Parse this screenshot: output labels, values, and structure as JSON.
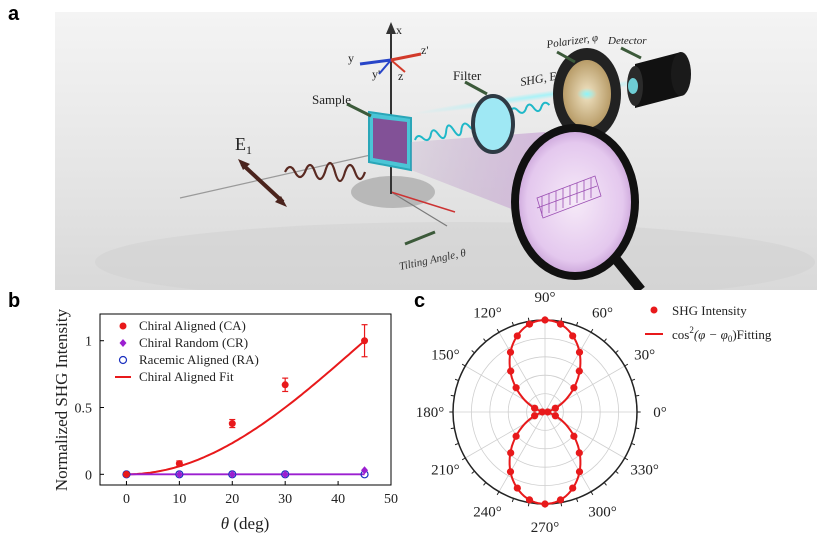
{
  "panels": {
    "a": "a",
    "b": "b",
    "c": "c"
  },
  "schematic": {
    "axis_x": "x",
    "axis_y": "y",
    "axis_z": "z",
    "axis_yp": "y'",
    "axis_zp": "z'",
    "sample": "Sample",
    "filter": "Filter",
    "polarizer": "Polarizer, φ",
    "detector": "Detector",
    "shg": "SHG, E",
    "shg_sub": "2",
    "e1": "E",
    "e1_sub": "1",
    "tilt": "Tilting Angle, θ"
  },
  "chart_data": [
    {
      "type": "line",
      "xlabel_sym": "θ",
      "xlabel_unit": " (deg)",
      "ylabel": "Normalized SHG Intensity",
      "xlim": [
        -5,
        50
      ],
      "ylim": [
        -0.08,
        1.2
      ],
      "xticks": [
        0,
        10,
        20,
        30,
        40,
        50
      ],
      "yticks": [
        0,
        0.5,
        1
      ],
      "ytick_labels": [
        "0",
        "0.5",
        "1"
      ],
      "legend_position": "top-left",
      "series": [
        {
          "name": "Chiral Aligned (CA)",
          "marker": "filled-circle",
          "color": "#e8191b",
          "x": [
            0,
            10,
            20,
            30,
            45
          ],
          "y": [
            0.0,
            0.08,
            0.38,
            0.67,
            1.0
          ],
          "err": [
            0.01,
            0.02,
            0.03,
            0.05,
            0.12
          ]
        },
        {
          "name": "Chiral Random (CR)",
          "marker": "diamond",
          "color": "#9b1fd0",
          "x": [
            0,
            10,
            20,
            30,
            45
          ],
          "y": [
            0.0,
            0.0,
            0.0,
            0.0,
            0.03
          ]
        },
        {
          "name": "Racemic Aligned (RA)",
          "marker": "open-circle",
          "color": "#1a2fbf",
          "x": [
            0,
            10,
            20,
            30,
            45
          ],
          "y": [
            0.0,
            0.0,
            0.0,
            0.0,
            0.0
          ]
        },
        {
          "name": "Chiral Aligned Fit",
          "marker": "line",
          "color": "#e8191b"
        }
      ]
    },
    {
      "type": "scatter",
      "projection": "polar",
      "angle_labels": [
        "0°",
        "30°",
        "60°",
        "90°",
        "120°",
        "150°",
        "180°",
        "210°",
        "240°",
        "270°",
        "300°",
        "330°"
      ],
      "radial_max": 1,
      "legend_position": "top-right",
      "series": [
        {
          "name": "SHG Intensity",
          "marker": "filled-circle",
          "color": "#e8191b",
          "angles_deg": [
            0,
            20,
            40,
            50,
            60,
            70,
            80,
            90,
            100,
            110,
            120,
            130,
            140,
            160,
            180,
            200,
            220,
            230,
            240,
            250,
            260,
            270,
            280,
            290,
            300,
            310,
            320,
            340
          ],
          "r": [
            0.03,
            0.12,
            0.41,
            0.58,
            0.75,
            0.88,
            0.97,
            1.0,
            0.97,
            0.88,
            0.75,
            0.58,
            0.41,
            0.12,
            0.03,
            0.12,
            0.41,
            0.58,
            0.75,
            0.88,
            0.97,
            1.0,
            0.97,
            0.88,
            0.75,
            0.58,
            0.41,
            0.12
          ]
        },
        {
          "name_main": "cos",
          "name_sup": "2",
          "name_rest": "(φ − φ",
          "name_sub": "0",
          "name_end": ")Fitting",
          "marker": "line",
          "color": "#e8191b"
        }
      ]
    }
  ]
}
